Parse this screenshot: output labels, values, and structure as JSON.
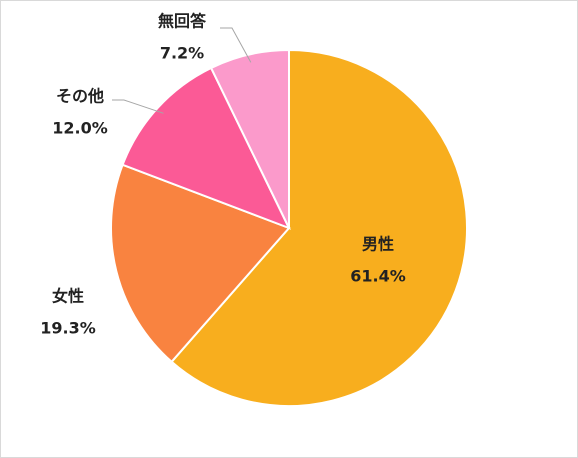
{
  "chart_data": {
    "type": "pie",
    "categories": [
      "男性",
      "女性",
      "その他",
      "無回答"
    ],
    "values": [
      61.4,
      19.3,
      12.0,
      7.2
    ],
    "value_labels": [
      "61.4%",
      "19.3%",
      "12.0%",
      "7.2%"
    ],
    "colors": [
      "#f8ae1e",
      "#f98340",
      "#fb5a96",
      "#fb9acb"
    ]
  }
}
